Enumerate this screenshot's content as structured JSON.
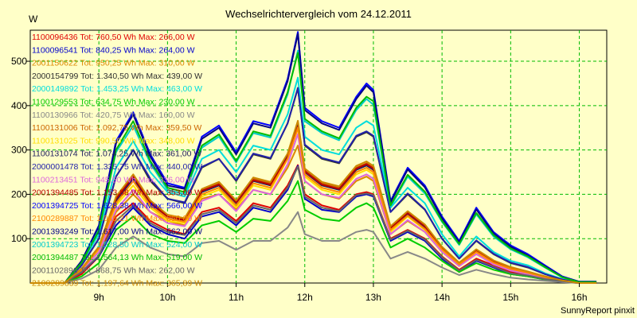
{
  "chart_data": {
    "type": "line",
    "title": "Wechselrichtervergleich vom 24.12.2011",
    "ylabel": "W",
    "xlabel": "",
    "credit": "SunnyReport pinxit",
    "x_ticks": [
      "9h",
      "10h",
      "11h",
      "12h",
      "13h",
      "14h",
      "15h",
      "16h"
    ],
    "y_ticks": [
      100,
      200,
      300,
      400,
      500
    ],
    "xlim": [
      8.0,
      16.4
    ],
    "ylim": [
      0,
      570
    ],
    "grid": true,
    "legend_position": "top-left",
    "x": [
      8.0,
      8.5,
      8.75,
      9.0,
      9.25,
      9.5,
      9.75,
      10.0,
      10.25,
      10.5,
      10.75,
      11.0,
      11.25,
      11.5,
      11.75,
      11.9,
      12.0,
      12.25,
      12.5,
      12.75,
      12.9,
      13.0,
      13.25,
      13.5,
      13.75,
      14.0,
      14.25,
      14.5,
      14.75,
      15.0,
      15.25,
      15.5,
      15.75,
      16.0,
      16.25
    ],
    "series": [
      {
        "name": "1100096436 Tot: 760,50 Wh Max: 266,00 W",
        "color": "#e00000",
        "values": [
          0,
          0,
          20,
          60,
          150,
          180,
          140,
          120,
          110,
          160,
          170,
          140,
          180,
          170,
          220,
          266,
          200,
          175,
          165,
          200,
          205,
          200,
          100,
          120,
          100,
          60,
          30,
          55,
          40,
          25,
          20,
          10,
          5,
          0,
          0
        ]
      },
      {
        "name": "1100096541 Tot: 840,25 Wh Max: 264,00 W",
        "color": "#0000cc",
        "values": [
          0,
          0,
          25,
          60,
          130,
          170,
          130,
          110,
          100,
          150,
          160,
          130,
          170,
          160,
          210,
          264,
          190,
          165,
          160,
          195,
          200,
          195,
          95,
          115,
          95,
          55,
          25,
          50,
          35,
          20,
          15,
          8,
          3,
          0,
          0
        ]
      },
      {
        "name": "2001150622 Tot: 950,25 Wh Max: 310,00 W",
        "color": "#dd8800",
        "values": [
          0,
          0,
          30,
          70,
          160,
          200,
          160,
          140,
          130,
          190,
          200,
          165,
          210,
          200,
          260,
          310,
          230,
          200,
          190,
          230,
          240,
          230,
          110,
          140,
          115,
          70,
          40,
          65,
          45,
          30,
          22,
          12,
          5,
          0,
          0
        ]
      },
      {
        "name": "2000154799 Tot: 1.340,50 Wh Max: 439,00 W",
        "color": "#303030",
        "values": [
          0,
          0,
          40,
          100,
          240,
          300,
          230,
          190,
          180,
          260,
          280,
          230,
          290,
          280,
          360,
          439,
          310,
          280,
          270,
          330,
          340,
          330,
          160,
          200,
          165,
          100,
          55,
          95,
          65,
          45,
          35,
          20,
          8,
          0,
          0
        ]
      },
      {
        "name": "2000149892 Tot: 1.453,25 Wh Max: 463,00 W",
        "color": "#00dddd",
        "values": [
          0,
          0,
          45,
          110,
          260,
          320,
          250,
          205,
          195,
          280,
          300,
          250,
          310,
          300,
          380,
          463,
          330,
          300,
          290,
          350,
          365,
          355,
          170,
          215,
          180,
          110,
          60,
          105,
          70,
          50,
          40,
          22,
          9,
          0,
          0
        ]
      },
      {
        "name": "1100129553 Tot: 634,75 Wh Max: 230,00 W",
        "color": "#00cc00",
        "values": [
          0,
          0,
          15,
          45,
          120,
          150,
          110,
          95,
          90,
          130,
          140,
          115,
          145,
          140,
          185,
          230,
          165,
          145,
          140,
          170,
          180,
          170,
          80,
          100,
          80,
          50,
          25,
          45,
          30,
          20,
          15,
          8,
          3,
          0,
          0
        ]
      },
      {
        "name": "1100130966 Tot: 420,75 Wh Max: 160,00 W",
        "color": "#888888",
        "values": [
          0,
          0,
          10,
          30,
          80,
          105,
          80,
          65,
          60,
          90,
          95,
          75,
          95,
          95,
          125,
          160,
          110,
          95,
          95,
          115,
          120,
          115,
          55,
          70,
          55,
          35,
          18,
          30,
          20,
          12,
          8,
          5,
          2,
          0,
          0
        ]
      },
      {
        "name": "1100131006 Tot: 1.092,75 Wh Max: 359,50 W",
        "color": "#cc6600",
        "values": [
          0,
          0,
          30,
          80,
          190,
          240,
          180,
          150,
          145,
          210,
          225,
          185,
          235,
          225,
          290,
          359.5,
          255,
          225,
          215,
          260,
          270,
          260,
          125,
          160,
          130,
          80,
          45,
          75,
          50,
          35,
          25,
          15,
          6,
          0,
          0
        ]
      },
      {
        "name": "1100131025 Tot: 990,50 Wh Max: 348,00 W",
        "color": "#ffdd00",
        "values": [
          0,
          0,
          30,
          75,
          175,
          220,
          170,
          140,
          135,
          195,
          210,
          170,
          220,
          210,
          280,
          348,
          240,
          210,
          200,
          245,
          255,
          245,
          115,
          150,
          120,
          75,
          40,
          70,
          45,
          30,
          22,
          12,
          5,
          0,
          0
        ]
      },
      {
        "name": "1100131074 Tot: 1.074,25 Wh Max: 361,00 W",
        "color": "#202060",
        "values": [
          0,
          0,
          32,
          80,
          185,
          235,
          180,
          150,
          140,
          205,
          220,
          180,
          230,
          220,
          290,
          361,
          250,
          220,
          210,
          255,
          265,
          255,
          120,
          155,
          125,
          78,
          42,
          72,
          48,
          32,
          24,
          13,
          5,
          0,
          0
        ]
      },
      {
        "name": "2000001478 Tot: 1.335,75 Wh Max: 440,00 W",
        "color": "#2222aa",
        "values": [
          0,
          0,
          40,
          100,
          240,
          300,
          235,
          190,
          182,
          262,
          280,
          232,
          292,
          282,
          360,
          440,
          312,
          282,
          272,
          332,
          342,
          332,
          160,
          202,
          166,
          100,
          55,
          96,
          66,
          46,
          36,
          20,
          8,
          0,
          0
        ]
      },
      {
        "name": "1100213451 Tot: 945,50 Wh Max: 336,00 W",
        "color": "#dd66dd",
        "values": [
          0,
          0,
          28,
          70,
          165,
          210,
          160,
          135,
          128,
          185,
          200,
          162,
          210,
          200,
          268,
          336,
          230,
          200,
          192,
          235,
          245,
          235,
          110,
          142,
          115,
          70,
          38,
          65,
          42,
          28,
          20,
          11,
          4,
          0,
          0
        ]
      },
      {
        "name": "2001394485 Tot: 1.153,88 Wh Max: 353,00 W",
        "color": "#bb0000",
        "values": [
          0,
          0,
          30,
          80,
          190,
          240,
          182,
          150,
          142,
          208,
          222,
          182,
          232,
          222,
          284,
          353,
          252,
          222,
          212,
          258,
          268,
          258,
          124,
          158,
          128,
          80,
          44,
          74,
          49,
          34,
          25,
          14,
          6,
          0,
          0
        ]
      },
      {
        "name": "2001394725 Tot: 1.628,38 Wh Max: 566,00 W",
        "color": "#0000ff",
        "values": [
          0,
          0,
          50,
          130,
          320,
          385,
          290,
          225,
          215,
          330,
          355,
          295,
          365,
          355,
          460,
          566,
          395,
          365,
          350,
          420,
          450,
          435,
          185,
          260,
          220,
          150,
          95,
          170,
          115,
          85,
          65,
          40,
          15,
          3,
          3
        ]
      },
      {
        "name": "2100289887 Tot: 1.046,21 Wh Max: 350,00 W",
        "color": "#ff8800",
        "values": [
          0,
          0,
          30,
          78,
          180,
          230,
          175,
          145,
          138,
          200,
          215,
          175,
          225,
          215,
          280,
          350,
          245,
          215,
          205,
          250,
          260,
          250,
          120,
          152,
          122,
          76,
          42,
          70,
          46,
          32,
          23,
          13,
          5,
          0,
          0
        ]
      },
      {
        "name": "2001393249 Tot: 1.617,00 Wh Max: 562,00 W",
        "color": "#000088",
        "values": [
          0,
          0,
          50,
          128,
          315,
          380,
          285,
          220,
          212,
          325,
          350,
          290,
          360,
          350,
          455,
          562,
          390,
          360,
          345,
          415,
          445,
          430,
          182,
          256,
          216,
          146,
          92,
          166,
          112,
          82,
          62,
          38,
          14,
          3,
          3
        ]
      },
      {
        "name": "2001394723 Tot: 1.528,50 Wh Max: 524,00 W",
        "color": "#00cccc",
        "values": [
          0,
          0,
          46,
          120,
          295,
          355,
          270,
          210,
          200,
          305,
          330,
          272,
          338,
          328,
          425,
          524,
          365,
          338,
          322,
          390,
          415,
          402,
          172,
          240,
          202,
          138,
          86,
          155,
          105,
          76,
          58,
          35,
          13,
          2,
          2
        ]
      },
      {
        "name": "2001394487 Tot: 1.564,13 Wh Max: 519,00 W",
        "color": "#00bb00",
        "values": [
          0,
          0,
          46,
          118,
          300,
          365,
          275,
          215,
          205,
          310,
          335,
          275,
          342,
          332,
          430,
          519,
          370,
          342,
          326,
          395,
          420,
          410,
          175,
          244,
          206,
          140,
          88,
          158,
          108,
          78,
          60,
          36,
          13,
          2,
          2
        ]
      },
      {
        "name": "2001102896 Tot: 868,75 Wh Max: 262,00 W",
        "color": "#666666",
        "values": [
          0,
          0,
          25,
          62,
          140,
          175,
          135,
          115,
          108,
          155,
          165,
          135,
          175,
          165,
          215,
          262,
          195,
          170,
          162,
          198,
          202,
          198,
          98,
          118,
          98,
          58,
          28,
          52,
          37,
          22,
          17,
          9,
          4,
          0,
          0
        ]
      },
      {
        "name": "2100289839 Tot: 1.197,64 Wh Max: 365,89 W",
        "color": "#cc8800",
        "values": [
          0,
          0,
          33,
          82,
          195,
          245,
          186,
          154,
          146,
          212,
          228,
          186,
          238,
          228,
          292,
          365.89,
          258,
          228,
          218,
          264,
          274,
          264,
          128,
          162,
          132,
          82,
          46,
          76,
          51,
          36,
          26,
          15,
          6,
          0,
          0
        ]
      }
    ]
  }
}
